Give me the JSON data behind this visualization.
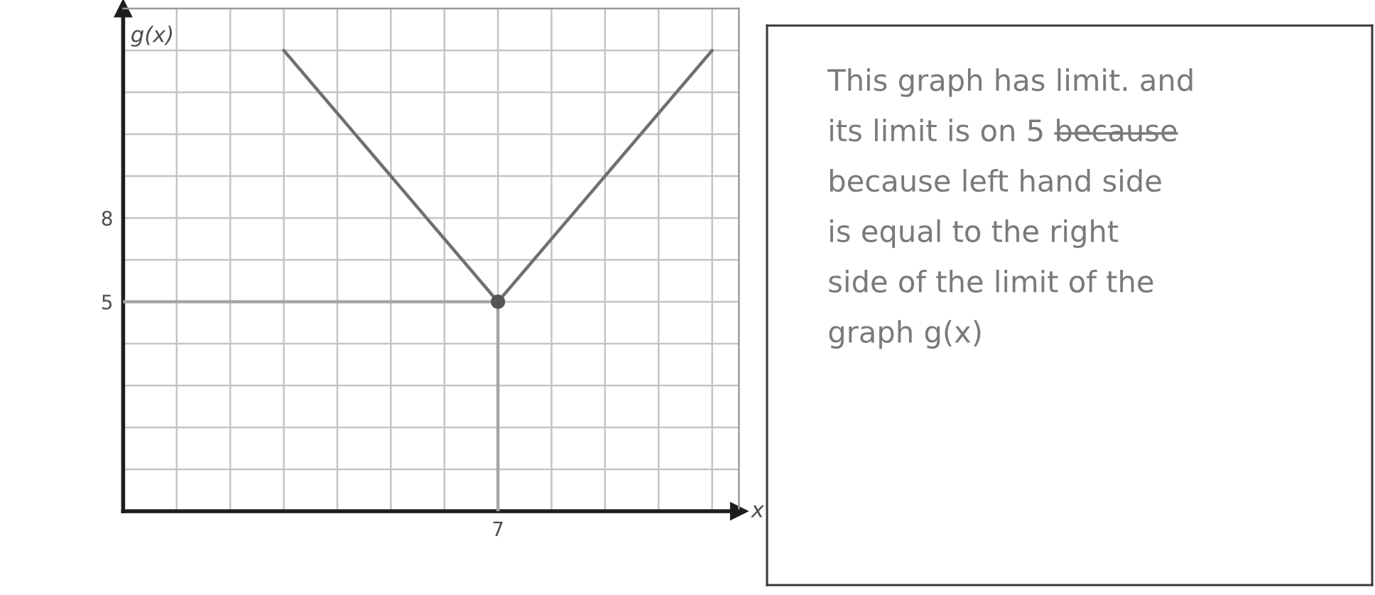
{
  "chart_data": [
    {
      "type": "line",
      "xlabel": "x",
      "ylabel": "g(x)",
      "ylim": [
        -2.5,
        15.5
      ],
      "categories": [
        null,
        null,
        null,
        null,
        null,
        null,
        null,
        "7",
        null,
        null,
        null,
        null
      ],
      "yticks": [
        {
          "value": -1,
          "label": null
        },
        {
          "value": 0.5,
          "label": null
        },
        {
          "value": 2,
          "label": null
        },
        {
          "value": 3.5,
          "label": null
        },
        5,
        {
          "value": 6.5,
          "label": null
        },
        8,
        {
          "value": 9.5,
          "label": null
        },
        {
          "value": 11,
          "label": null
        },
        {
          "value": 12.5,
          "label": null
        },
        {
          "value": 14,
          "label": null
        }
      ],
      "grid": true,
      "line_style": "solid",
      "series": [
        {
          "color": "#707070",
          "values": [
            null,
            null,
            null,
            14,
            11.75,
            9.5,
            7.25,
            5,
            7.25,
            9.5,
            11.75,
            14
          ]
        },
        {
          "color": "#a6a6a6",
          "values": [
            5,
            5,
            5,
            5,
            5,
            5,
            5,
            5,
            null,
            null,
            null,
            null
          ]
        },
        {
          "color": "#a6a6a6",
          "x": [
            "7",
            "7"
          ],
          "values": [
            5,
            -2.5
          ]
        },
        {
          "type": "scatter",
          "color": "#555555",
          "x": [
            "7"
          ],
          "values": [
            5
          ],
          "marker": "circle"
        }
      ]
    },
    {
      "type": "other",
      "annotations": [
        "This graph has limit. and",
        "its limit is on 5 b̶e̶c̶a̶u̶s̶e̶",
        "because left hand side",
        "is equal to the right",
        "side of the limit of the",
        "graph g(x)"
      ]
    }
  ]
}
